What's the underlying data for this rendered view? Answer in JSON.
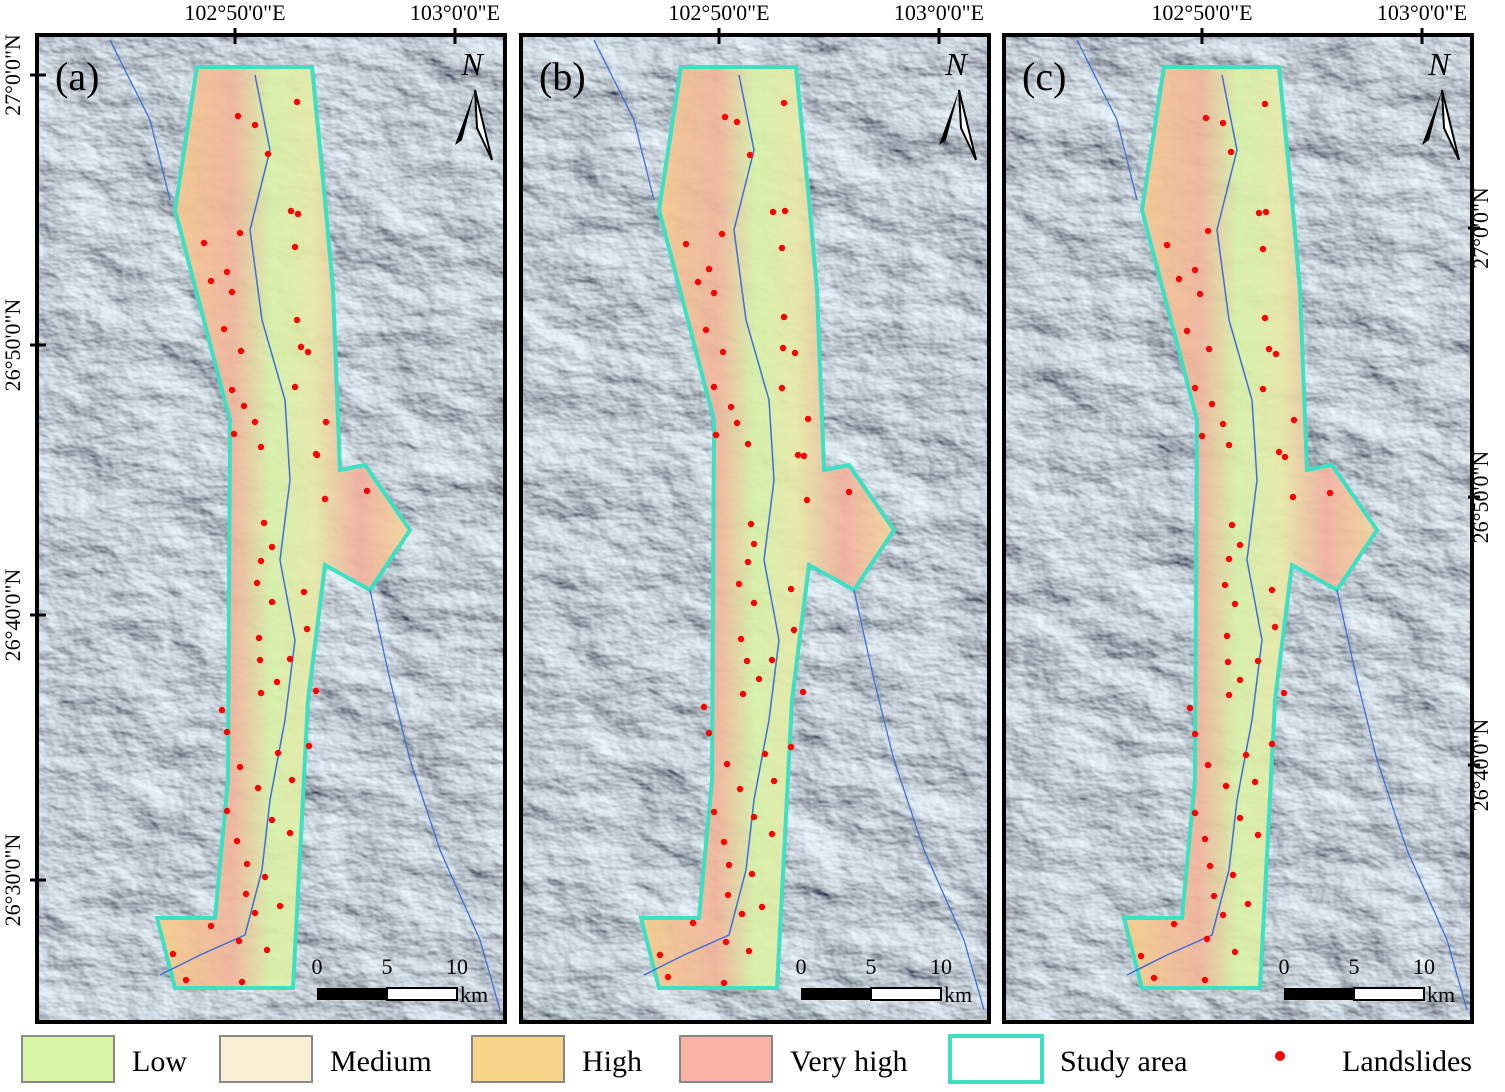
{
  "panels": [
    {
      "label": "(a)",
      "north": "N"
    },
    {
      "label": "(b)",
      "north": "N"
    },
    {
      "label": "(c)",
      "north": "N"
    }
  ],
  "longitude_labels": [
    "102°50'0\"E",
    "103°0'0\"E"
  ],
  "latitude_labels_left": [
    "27°0'0\"N",
    "26°50'0\"N",
    "26°40'0\"N",
    "26°30'0\"N"
  ],
  "latitude_labels_right": [
    "27°0'0\"N",
    "26°50'0\"N",
    "26°40'0\"N"
  ],
  "scale_bar": {
    "ticks": [
      "0",
      "5",
      "10"
    ],
    "unit": "km"
  },
  "legend": [
    {
      "label": "Low",
      "color": "#d8f5a6"
    },
    {
      "label": "Medium",
      "color": "#faefd4"
    },
    {
      "label": "High",
      "color": "#f7d48a"
    },
    {
      "label": "Very high",
      "color": "#f9b3a4"
    },
    {
      "label": "Study area",
      "color": "#3de0c2"
    },
    {
      "label": "Landslides",
      "color": "#ff0000"
    }
  ]
}
